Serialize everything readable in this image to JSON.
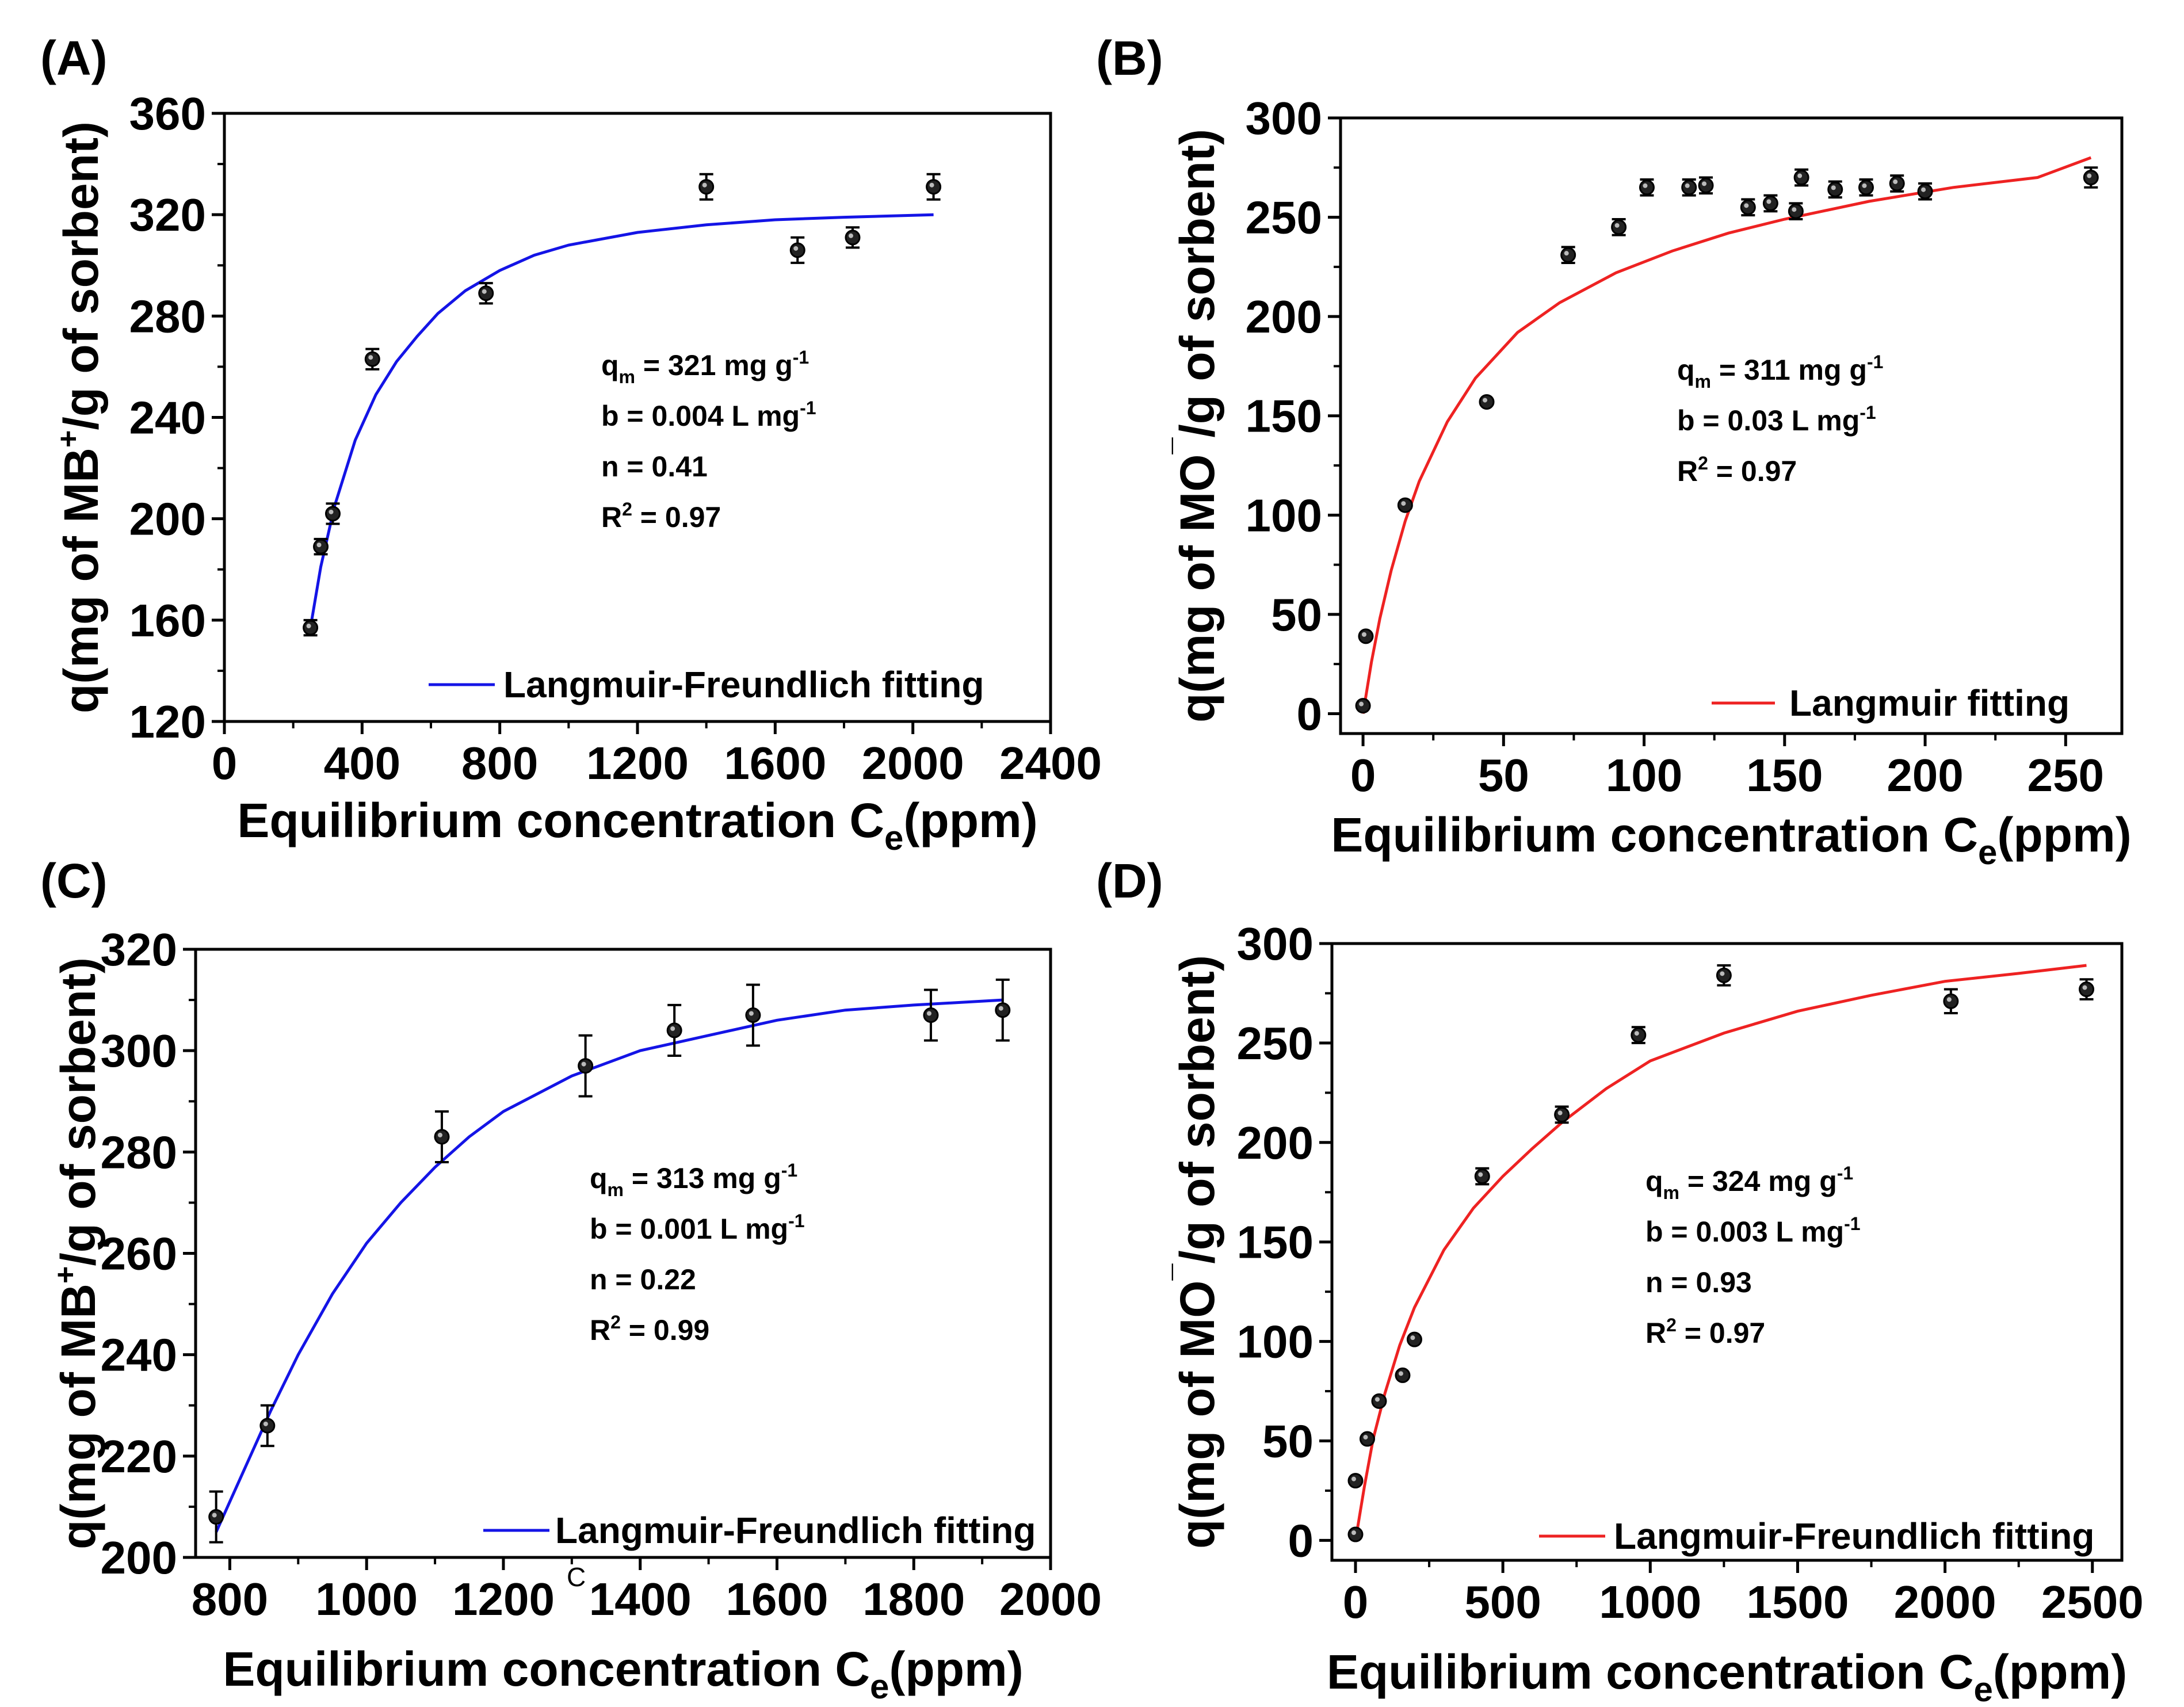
{
  "chart_data": [
    {
      "id": "A",
      "type": "scatter",
      "panel_label": "(A)",
      "xlabel": "Equilibrium concentration C",
      "xlabel_sub": "e",
      "xlabel_tail": "(ppm)",
      "ylabel_pre": "q(mg of MB",
      "ylabel_sup": "+",
      "ylabel_post": "/g of sorbent)",
      "xlim": [
        0,
        2400
      ],
      "ylim": [
        120,
        360
      ],
      "xticks": [
        0,
        400,
        800,
        1200,
        1600,
        2000,
        2400
      ],
      "yticks": [
        120,
        160,
        200,
        240,
        280,
        320,
        360
      ],
      "points": [
        {
          "x": 250,
          "y": 157,
          "err": 3
        },
        {
          "x": 280,
          "y": 189,
          "err": 3
        },
        {
          "x": 315,
          "y": 202,
          "err": 4
        },
        {
          "x": 430,
          "y": 263,
          "err": 4
        },
        {
          "x": 760,
          "y": 289,
          "err": 4
        },
        {
          "x": 1400,
          "y": 331,
          "err": 5
        },
        {
          "x": 1665,
          "y": 306,
          "err": 5
        },
        {
          "x": 1825,
          "y": 311,
          "err": 4
        },
        {
          "x": 2060,
          "y": 331,
          "err": 5
        }
      ],
      "fit": {
        "name": "Langmuir-Freundlich fitting",
        "color": "#1414e6",
        "points": [
          [
            250,
            157
          ],
          [
            280,
            181
          ],
          [
            320,
            205
          ],
          [
            380,
            231
          ],
          [
            440,
            249
          ],
          [
            500,
            262
          ],
          [
            560,
            272
          ],
          [
            620,
            281
          ],
          [
            700,
            290
          ],
          [
            800,
            298
          ],
          [
            900,
            304
          ],
          [
            1000,
            308
          ],
          [
            1200,
            313
          ],
          [
            1400,
            316
          ],
          [
            1600,
            318
          ],
          [
            1800,
            319
          ],
          [
            2060,
            320
          ]
        ]
      },
      "annotations": [
        {
          "pre": "q",
          "sub": "m",
          "sup": "",
          "post": " = 321 mg g",
          "tail_sup": "-1"
        },
        {
          "pre": "b = 0.004 L mg",
          "sub": "",
          "sup": "",
          "post": "",
          "tail_sup": "-1"
        },
        {
          "pre": "n = 0.41",
          "sub": "",
          "sup": "",
          "post": "",
          "tail_sup": ""
        },
        {
          "pre": "R",
          "sub": "",
          "sup": "2",
          "post": " = 0.97",
          "tail_sup": ""
        }
      ],
      "legend_position": "bottom-right"
    },
    {
      "id": "B",
      "type": "scatter",
      "panel_label": "(B)",
      "xlabel": "Equilibrium concentration C",
      "xlabel_sub": "e",
      "xlabel_tail": "(ppm)",
      "ylabel_pre": "q(mg of MO",
      "ylabel_sup": "¯",
      "ylabel_post": "/g of sorbent)",
      "xlim": [
        -8,
        270
      ],
      "ylim": [
        -10,
        300
      ],
      "xticks": [
        0,
        50,
        100,
        150,
        200,
        250
      ],
      "yticks": [
        0,
        50,
        100,
        150,
        200,
        250,
        300
      ],
      "points": [
        {
          "x": 0,
          "y": 4,
          "err": 0
        },
        {
          "x": 1,
          "y": 39,
          "err": 0
        },
        {
          "x": 15,
          "y": 105,
          "err": 0
        },
        {
          "x": 44,
          "y": 157,
          "err": 0
        },
        {
          "x": 73,
          "y": 231,
          "err": 4
        },
        {
          "x": 91,
          "y": 245,
          "err": 4
        },
        {
          "x": 101,
          "y": 265,
          "err": 4
        },
        {
          "x": 116,
          "y": 265,
          "err": 4
        },
        {
          "x": 122,
          "y": 266,
          "err": 4
        },
        {
          "x": 137,
          "y": 255,
          "err": 4
        },
        {
          "x": 145,
          "y": 257,
          "err": 4
        },
        {
          "x": 154,
          "y": 253,
          "err": 4
        },
        {
          "x": 156,
          "y": 270,
          "err": 4
        },
        {
          "x": 168,
          "y": 264,
          "err": 4
        },
        {
          "x": 179,
          "y": 265,
          "err": 4
        },
        {
          "x": 190,
          "y": 267,
          "err": 4
        },
        {
          "x": 200,
          "y": 263,
          "err": 4
        },
        {
          "x": 259,
          "y": 270,
          "err": 5
        }
      ],
      "fit": {
        "name": "Langmuir fitting",
        "color": "#ee2222",
        "points": [
          [
            0,
            0
          ],
          [
            3,
            26
          ],
          [
            6,
            48
          ],
          [
            10,
            72
          ],
          [
            15,
            97
          ],
          [
            20,
            117
          ],
          [
            30,
            147
          ],
          [
            40,
            169
          ],
          [
            55,
            192
          ],
          [
            70,
            207
          ],
          [
            90,
            222
          ],
          [
            110,
            233
          ],
          [
            130,
            242
          ],
          [
            150,
            249
          ],
          [
            180,
            258
          ],
          [
            210,
            265
          ],
          [
            240,
            270
          ],
          [
            259,
            280
          ]
        ]
      },
      "annotations": [
        {
          "pre": "q",
          "sub": "m",
          "sup": "",
          "post": " = 311 mg g",
          "tail_sup": "-1"
        },
        {
          "pre": "b = 0.03 L mg",
          "sub": "",
          "sup": "",
          "post": "",
          "tail_sup": "-1"
        },
        {
          "pre": "R",
          "sub": "",
          "sup": "2",
          "post": " = 0.97",
          "tail_sup": ""
        }
      ],
      "legend_position": "bottom-right"
    },
    {
      "id": "C",
      "type": "scatter",
      "panel_label": "(C)",
      "xlabel": "Equilibrium concentration C",
      "xlabel_sub": "e",
      "xlabel_tail": "(ppm)",
      "ylabel_pre": "q(mg of MB",
      "ylabel_sup": "+",
      "ylabel_post": "/g of sorbent)",
      "xlim": [
        750,
        2000
      ],
      "ylim": [
        200,
        320
      ],
      "xticks": [
        800,
        1000,
        1200,
        1400,
        1600,
        1800,
        2000
      ],
      "yticks": [
        200,
        220,
        240,
        260,
        280,
        300,
        320
      ],
      "points": [
        {
          "x": 780,
          "y": 208,
          "err": 5
        },
        {
          "x": 855,
          "y": 226,
          "err": 4
        },
        {
          "x": 1110,
          "y": 283,
          "err": 5
        },
        {
          "x": 1320,
          "y": 297,
          "err": 6
        },
        {
          "x": 1450,
          "y": 304,
          "err": 5
        },
        {
          "x": 1565,
          "y": 307,
          "err": 6
        },
        {
          "x": 1825,
          "y": 307,
          "err": 5
        },
        {
          "x": 1930,
          "y": 308,
          "err": 6
        }
      ],
      "fit": {
        "name": "Langmuir-Freundlich fitting",
        "color": "#1414e6",
        "points": [
          [
            780,
            205
          ],
          [
            820,
            217
          ],
          [
            860,
            229
          ],
          [
            900,
            240
          ],
          [
            950,
            252
          ],
          [
            1000,
            262
          ],
          [
            1050,
            270
          ],
          [
            1100,
            277
          ],
          [
            1150,
            283
          ],
          [
            1200,
            288
          ],
          [
            1300,
            295
          ],
          [
            1400,
            300
          ],
          [
            1500,
            303
          ],
          [
            1600,
            306
          ],
          [
            1700,
            308
          ],
          [
            1800,
            309
          ],
          [
            1930,
            310
          ]
        ]
      },
      "annotations": [
        {
          "pre": "q",
          "sub": "m",
          "sup": "",
          "post": " = 313 mg g",
          "tail_sup": "-1"
        },
        {
          "pre": "b = 0.001 L mg",
          "sub": "",
          "sup": "",
          "post": "",
          "tail_sup": "-1"
        },
        {
          "pre": "n = 0.22",
          "sub": "",
          "sup": "",
          "post": "",
          "tail_sup": ""
        },
        {
          "pre": "R",
          "sub": "",
          "sup": "2",
          "post": " = 0.99",
          "tail_sup": ""
        }
      ],
      "stray_text": "C",
      "legend_position": "bottom-right"
    },
    {
      "id": "D",
      "type": "scatter",
      "panel_label": "(D)",
      "xlabel": "Equilibrium concentration C",
      "xlabel_sub": "e",
      "xlabel_tail": "(ppm)",
      "ylabel_pre": "q(mg of MO",
      "ylabel_sup": "¯",
      "ylabel_post": "/g of sorbent)",
      "xlim": [
        -80,
        2600
      ],
      "ylim": [
        -10,
        300
      ],
      "xticks": [
        0,
        500,
        1000,
        1500,
        2000,
        2500
      ],
      "yticks": [
        0,
        50,
        100,
        150,
        200,
        250,
        300
      ],
      "points": [
        {
          "x": 0,
          "y": 3,
          "err": 0
        },
        {
          "x": 0,
          "y": 30,
          "err": 0
        },
        {
          "x": 40,
          "y": 51,
          "err": 0
        },
        {
          "x": 80,
          "y": 70,
          "err": 0
        },
        {
          "x": 160,
          "y": 83,
          "err": 0
        },
        {
          "x": 200,
          "y": 101,
          "err": 0
        },
        {
          "x": 430,
          "y": 183,
          "err": 4
        },
        {
          "x": 700,
          "y": 214,
          "err": 4
        },
        {
          "x": 960,
          "y": 254,
          "err": 4
        },
        {
          "x": 1250,
          "y": 284,
          "err": 5
        },
        {
          "x": 2020,
          "y": 271,
          "err": 6
        },
        {
          "x": 2480,
          "y": 277,
          "err": 5
        }
      ],
      "fit": {
        "name": "Langmuir-Freundlich fitting",
        "color": "#ee2222",
        "points": [
          [
            0,
            0
          ],
          [
            30,
            27
          ],
          [
            60,
            51
          ],
          [
            100,
            74
          ],
          [
            150,
            98
          ],
          [
            200,
            117
          ],
          [
            300,
            146
          ],
          [
            400,
            167
          ],
          [
            500,
            183
          ],
          [
            600,
            197
          ],
          [
            700,
            210
          ],
          [
            850,
            227
          ],
          [
            1000,
            241
          ],
          [
            1250,
            255
          ],
          [
            1500,
            266
          ],
          [
            1750,
            274
          ],
          [
            2000,
            281
          ],
          [
            2250,
            285
          ],
          [
            2480,
            289
          ]
        ]
      },
      "annotations": [
        {
          "pre": "q",
          "sub": "m",
          "sup": "",
          "post": " = 324 mg g",
          "tail_sup": "-1"
        },
        {
          "pre": "b = 0.003 L mg",
          "sub": "",
          "sup": "",
          "post": "",
          "tail_sup": "-1"
        },
        {
          "pre": "n = 0.93",
          "sub": "",
          "sup": "",
          "post": "",
          "tail_sup": ""
        },
        {
          "pre": "R",
          "sub": "",
          "sup": "2",
          "post": " = 0.97",
          "tail_sup": ""
        }
      ],
      "legend_position": "bottom-right"
    }
  ]
}
